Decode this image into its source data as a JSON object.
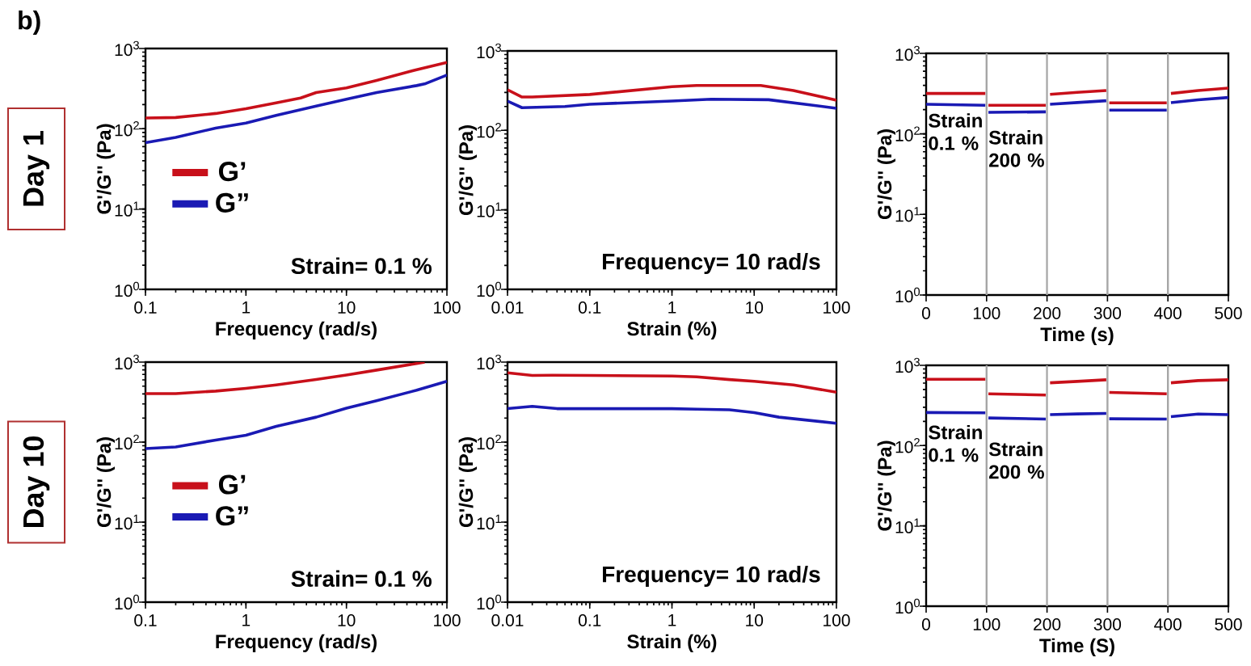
{
  "chart_data": [
    {
      "type": "line",
      "title": "b)",
      "subtitle": "Day 1",
      "xlabel": "Frequency (rad/s)",
      "ylabel": "G'/G'' (Pa)",
      "log": "xy",
      "xlim": [
        0.1,
        100
      ],
      "ylim": [
        1,
        1000
      ],
      "xticks": [
        0.1,
        1,
        10,
        100
      ],
      "yticks": [
        {
          "value": 1,
          "label": "10$^{0}$"
        },
        {
          "value": 10,
          "label": "10$^{1}$"
        },
        {
          "value": 100,
          "label": "10$^{2}$"
        },
        {
          "value": 1000,
          "label": "10$^{3}$"
        }
      ],
      "legend": "left",
      "annotations": [
        "Strain= 0.1 %"
      ],
      "series": [
        {
          "name": "G’",
          "color": "#c8101a",
          "x": [
            0.1,
            0.2,
            0.5,
            1,
            2,
            3.5,
            5,
            10,
            20,
            50,
            100
          ],
          "values": [
            136,
            138,
            155,
            178,
            210,
            242,
            283,
            323,
            400,
            545,
            670
          ]
        },
        {
          "name": "G”",
          "color": "#1a1ab4",
          "x": [
            0.1,
            0.2,
            0.5,
            1,
            2,
            5,
            10,
            20,
            50,
            60,
            100
          ],
          "values": [
            67,
            78,
            102,
            118,
            147,
            192,
            233,
            283,
            345,
            362,
            467
          ]
        }
      ]
    },
    {
      "type": "line",
      "xlabel": "Strain (%)",
      "ylabel": "G'/G'' (Pa)",
      "log": "xy",
      "xlim": [
        0.01,
        100
      ],
      "ylim": [
        1,
        1000
      ],
      "xticks": [
        0.01,
        0.1,
        1,
        10,
        100
      ],
      "yticks": [
        {
          "value": 1,
          "label": "10$^{0}$"
        },
        {
          "value": 10,
          "label": "10$^{1}$"
        },
        {
          "value": 100,
          "label": "10$^{2}$"
        },
        {
          "value": 1000,
          "label": "10$^{3}$"
        }
      ],
      "annotations": [
        "Frequency= 10 rad/s"
      ],
      "series": [
        {
          "color": "#c8101a",
          "x": [
            0.01,
            0.015,
            0.02,
            0.1,
            1,
            2,
            12,
            30,
            100
          ],
          "values": [
            324,
            263,
            263,
            283,
            355,
            367,
            367,
            318,
            240
          ]
        },
        {
          "color": "#1a1ab4",
          "x": [
            0.01,
            0.015,
            0.05,
            0.1,
            1,
            3,
            15,
            100
          ],
          "values": [
            234,
            193,
            200,
            213,
            234,
            247,
            243,
            190
          ]
        }
      ]
    },
    {
      "type": "line",
      "xlabel": "Time (s)",
      "ylabel": "G'/G'' (Pa)",
      "log": "y",
      "xlim": [
        0,
        500
      ],
      "ylim": [
        1,
        1000
      ],
      "xticks": [
        0,
        100,
        200,
        300,
        400,
        500
      ],
      "yticks": [
        {
          "value": 1,
          "label": "10$^{0}$"
        },
        {
          "value": 10,
          "label": "10$^{1}$"
        },
        {
          "value": 100,
          "label": "10$^{2}$"
        },
        {
          "value": 1000,
          "label": "10$^{3}$"
        }
      ],
      "annotations": [
        "Strain 0.1 %",
        "Strain 200 %"
      ],
      "ref_lines": [
        {
          "axis": "x",
          "value": 100,
          "color": "#a6a6a6"
        },
        {
          "axis": "x",
          "value": 200,
          "color": "#a6a6a6"
        },
        {
          "axis": "x",
          "value": 300,
          "color": "#a6a6a6"
        },
        {
          "axis": "x",
          "value": 400,
          "color": "#a6a6a6"
        }
      ],
      "x": [
        0,
        98,
        100,
        103,
        198,
        200,
        205,
        250,
        298,
        300,
        303,
        398,
        400,
        405,
        450,
        500
      ],
      "series": [
        {
          "color": "#c8101a",
          "values": [
            318,
            318,
            null,
            227,
            227,
            null,
            310,
            328,
            345,
            null,
            243,
            243,
            null,
            318,
            345,
            370
          ]
        },
        {
          "color": "#1a1ab4",
          "values": [
            233,
            227,
            null,
            185,
            188,
            null,
            233,
            245,
            258,
            null,
            197,
            197,
            null,
            244,
            265,
            283
          ]
        }
      ]
    },
    {
      "type": "line",
      "subtitle": "Day 10",
      "xlabel": "Frequency (rad/s)",
      "ylabel": "G'/G'' (Pa)",
      "log": "xy",
      "xlim": [
        0.1,
        100
      ],
      "ylim": [
        1,
        1000
      ],
      "xticks": [
        0.1,
        1,
        10,
        100
      ],
      "yticks": [
        {
          "value": 1,
          "label": "10$^{0}$"
        },
        {
          "value": 10,
          "label": "10$^{1}$"
        },
        {
          "value": 100,
          "label": "10$^{2}$"
        },
        {
          "value": 1000,
          "label": "10$^{3}$"
        }
      ],
      "legend": "left",
      "annotations": [
        "Strain= 0.1 %"
      ],
      "series": [
        {
          "name": "G’",
          "color": "#c8101a",
          "x": [
            0.1,
            0.2,
            0.5,
            1,
            2,
            5,
            10,
            20,
            50,
            60
          ],
          "values": [
            404,
            404,
            434,
            470,
            519,
            605,
            690,
            795,
            960,
            1000
          ]
        },
        {
          "name": "G”",
          "color": "#1a1ab4",
          "x": [
            0.1,
            0.2,
            0.5,
            1,
            2,
            5,
            10,
            20,
            50,
            100
          ],
          "values": [
            83,
            87,
            106,
            122,
            157,
            205,
            265,
            330,
            445,
            575
          ]
        }
      ]
    },
    {
      "type": "line",
      "xlabel": "Strain (%)",
      "ylabel": "G'/G'' (Pa)",
      "log": "xy",
      "xlim": [
        0.01,
        100
      ],
      "ylim": [
        1,
        1000
      ],
      "xticks": [
        0.01,
        0.1,
        1,
        10,
        100
      ],
      "yticks": [
        {
          "value": 1,
          "label": "10$^{0}$"
        },
        {
          "value": 10,
          "label": "10$^{1}$"
        },
        {
          "value": 100,
          "label": "10$^{2}$"
        },
        {
          "value": 1000,
          "label": "10$^{3}$"
        }
      ],
      "annotations": [
        "Frequency= 10 rad/s"
      ],
      "series": [
        {
          "color": "#c8101a",
          "x": [
            0.01,
            0.02,
            0.035,
            0.1,
            1,
            2,
            5,
            10,
            30,
            100
          ],
          "values": [
            735,
            680,
            685,
            680,
            670,
            655,
            605,
            575,
            519,
            420
          ]
        },
        {
          "color": "#1a1ab4",
          "x": [
            0.01,
            0.02,
            0.04,
            0.1,
            1,
            2,
            5,
            10,
            20,
            100
          ],
          "values": [
            262,
            280,
            262,
            262,
            262,
            258,
            253,
            234,
            205,
            172
          ]
        }
      ]
    },
    {
      "type": "line",
      "xlabel": "Time (S)",
      "ylabel": "G'/G'' (Pa)",
      "log": "y",
      "xlim": [
        0,
        500
      ],
      "ylim": [
        1,
        1000
      ],
      "xticks": [
        0,
        100,
        200,
        300,
        400,
        500
      ],
      "yticks": [
        {
          "value": 1,
          "label": "10$^{0}$"
        },
        {
          "value": 10,
          "label": "10$^{1}$"
        },
        {
          "value": 100,
          "label": "10$^{2}$"
        },
        {
          "value": 1000,
          "label": "10$^{3}$"
        }
      ],
      "annotations": [
        "Strain 0.1 %",
        "Strain 200 %"
      ],
      "ref_lines": [
        {
          "axis": "x",
          "value": 100,
          "color": "#a6a6a6"
        },
        {
          "axis": "x",
          "value": 200,
          "color": "#a6a6a6"
        },
        {
          "axis": "x",
          "value": 300,
          "color": "#a6a6a6"
        },
        {
          "axis": "x",
          "value": 400,
          "color": "#a6a6a6"
        }
      ],
      "x": [
        0,
        98,
        100,
        103,
        198,
        200,
        205,
        250,
        298,
        300,
        303,
        398,
        400,
        405,
        450,
        500
      ],
      "series": [
        {
          "color": "#c8101a",
          "values": [
            670,
            670,
            null,
            442,
            427,
            null,
            605,
            630,
            660,
            null,
            459,
            442,
            null,
            605,
            645,
            660
          ]
        },
        {
          "color": "#1a1ab4",
          "values": [
            258,
            256,
            null,
            221,
            214,
            null,
            243,
            248,
            252,
            null,
            216,
            214,
            null,
            229,
            247,
            243
          ]
        }
      ]
    }
  ]
}
